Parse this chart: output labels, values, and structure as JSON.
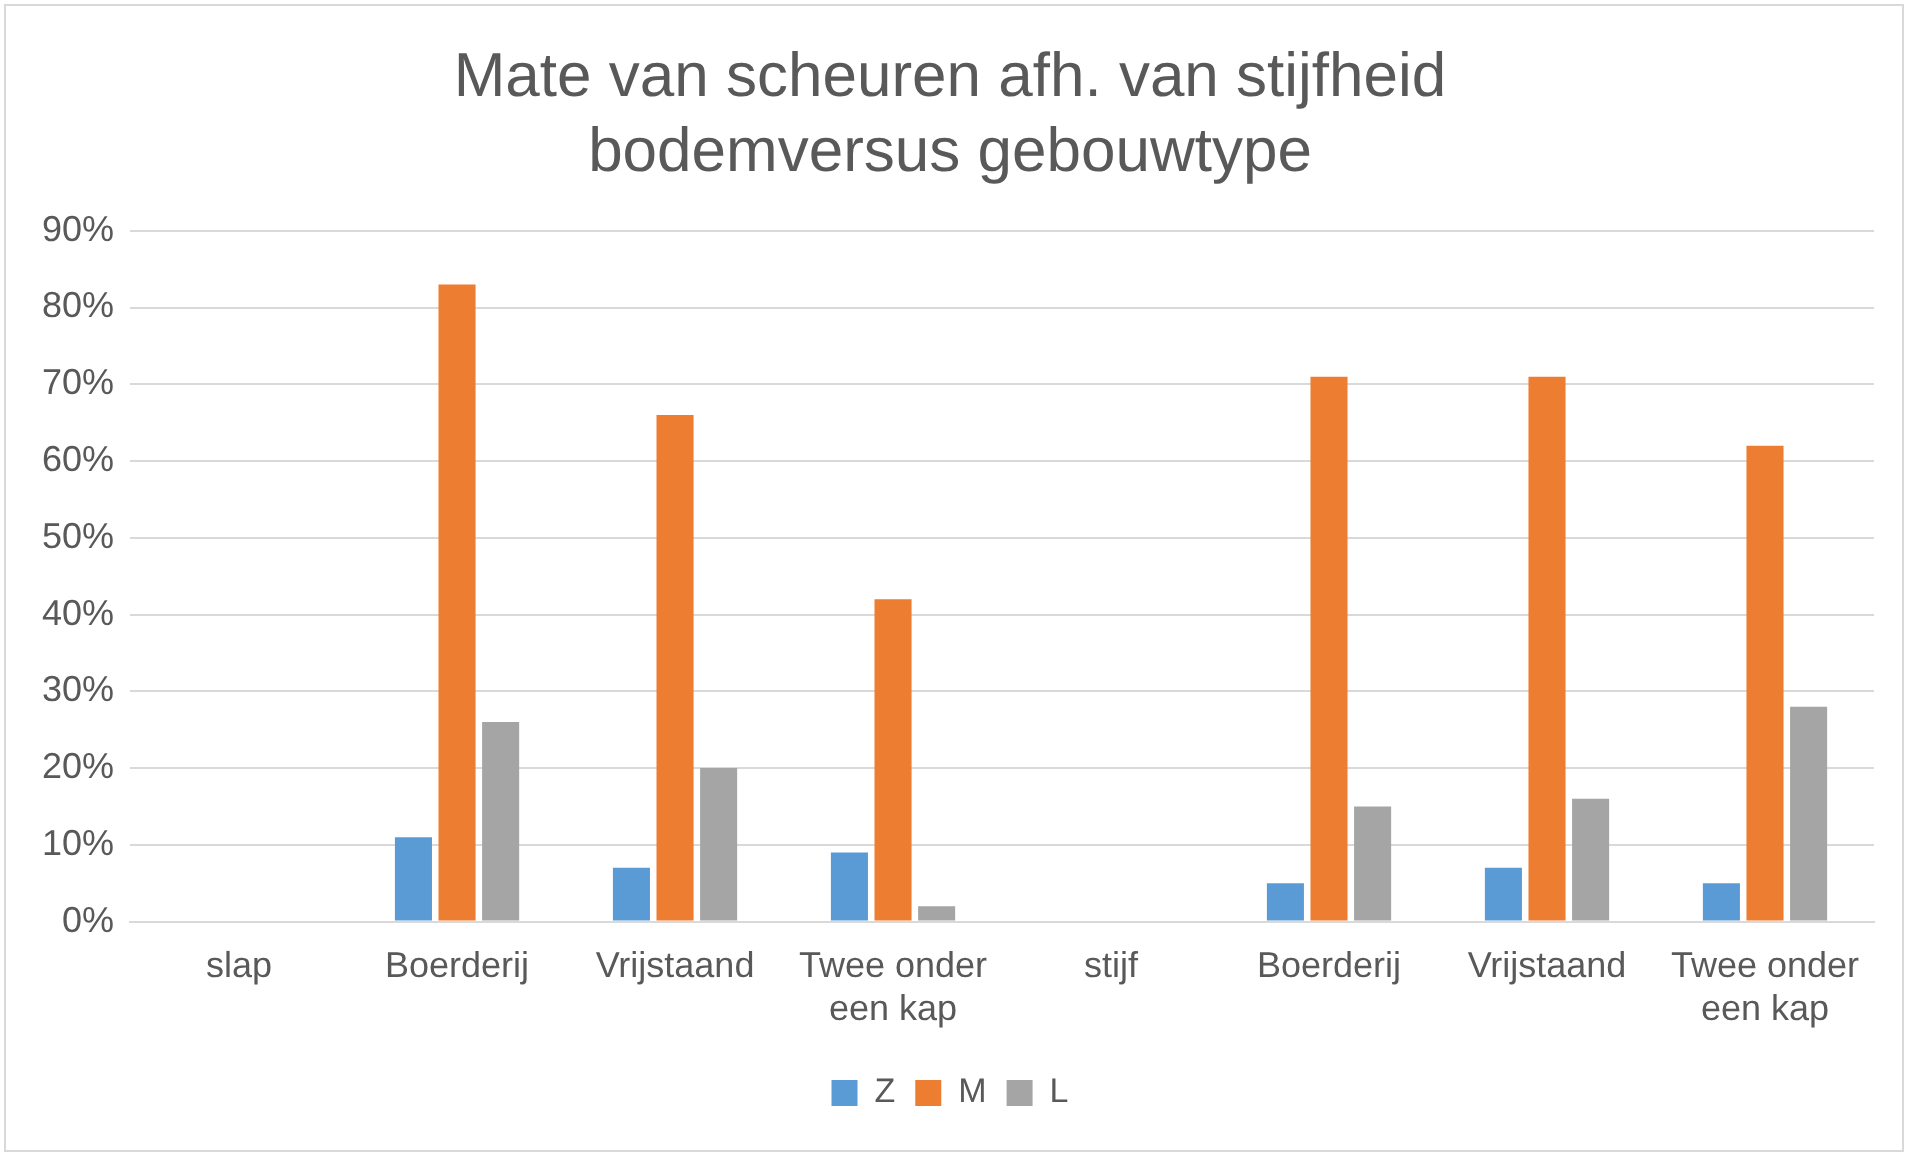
{
  "chart_data": {
    "type": "bar",
    "title": "Mate van scheuren afh. van stijfheid bodemversus gebouwtype",
    "categories": [
      "slap",
      "Boerderij",
      "Vrijstaand",
      "Twee onder een kap",
      "stijf",
      "Boerderij",
      "Vrijstaand",
      "Twee onder een kap"
    ],
    "series": [
      {
        "name": "Z",
        "color": "#5b9bd5",
        "values": [
          null,
          11,
          7,
          9,
          null,
          5,
          7,
          5
        ]
      },
      {
        "name": "M",
        "color": "#ed7d31",
        "values": [
          null,
          83,
          66,
          42,
          null,
          71,
          71,
          62
        ]
      },
      {
        "name": "L",
        "color": "#a5a5a5",
        "values": [
          null,
          26,
          20,
          2,
          null,
          15,
          16,
          28
        ]
      }
    ],
    "ylim": [
      0,
      90
    ],
    "yticks": [
      {
        "value": 0,
        "label": "0%"
      },
      {
        "value": 10,
        "label": "10%"
      },
      {
        "value": 20,
        "label": "20%"
      },
      {
        "value": 30,
        "label": "30%"
      },
      {
        "value": 40,
        "label": "40%"
      },
      {
        "value": 50,
        "label": "50%"
      },
      {
        "value": 60,
        "label": "60%"
      },
      {
        "value": 70,
        "label": "70%"
      },
      {
        "value": 80,
        "label": "80%"
      },
      {
        "value": 90,
        "label": "90%"
      }
    ],
    "grid": "y",
    "legend": "bottom"
  }
}
